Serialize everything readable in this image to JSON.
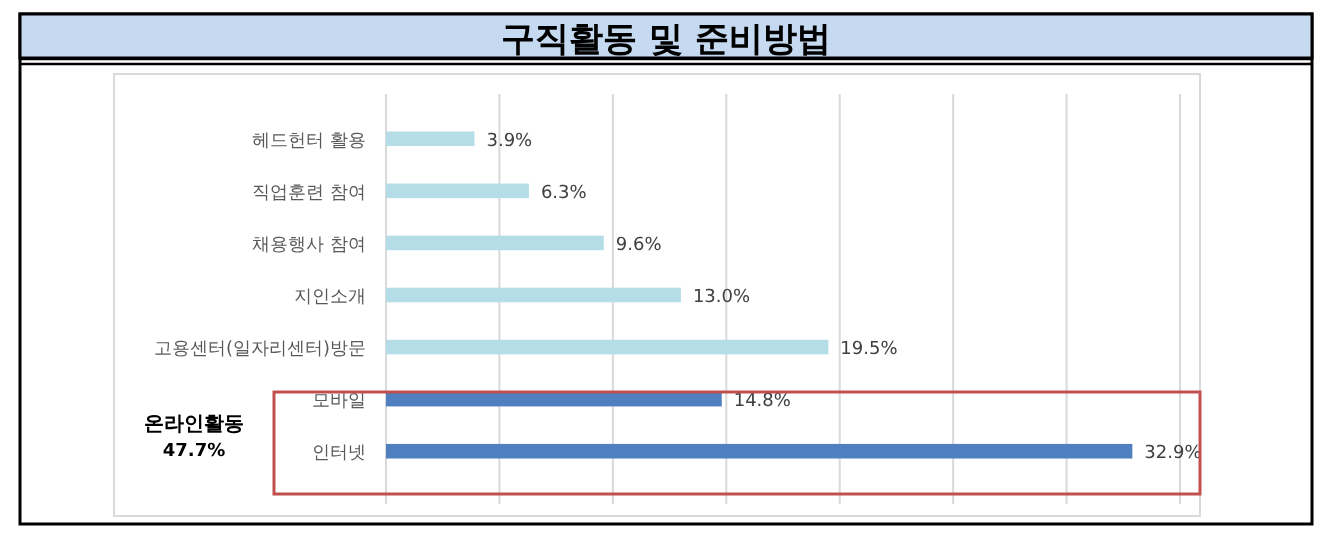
{
  "chart_data": {
    "type": "bar",
    "orientation": "horizontal",
    "title": "구직활동 및 준비방법",
    "categories": [
      "헤드헌터 활용",
      "직업훈련 참여",
      "채용행사 참여",
      "지인소개",
      "고용센터(일자리센터)방문",
      "모바일",
      "인터넷"
    ],
    "values": [
      3.9,
      6.3,
      9.6,
      13.0,
      19.5,
      14.8,
      32.9
    ],
    "colors": [
      "#b4dde7",
      "#b4dde7",
      "#b4dde7",
      "#b4dde7",
      "#b4dde7",
      "#4f7fbf",
      "#4f7fbf"
    ],
    "value_labels": [
      "3.9%",
      "6.3%",
      "9.6%",
      "13.0%",
      "19.5%",
      "14.8%",
      "32.9%"
    ],
    "xlim": [
      0,
      35
    ],
    "xticks": [
      {
        "value": 0,
        "label": null
      },
      {
        "value": 5,
        "label": null
      },
      {
        "value": 10,
        "label": null
      },
      {
        "value": 15,
        "label": null
      },
      {
        "value": 20,
        "label": null
      },
      {
        "value": 25,
        "label": null
      },
      {
        "value": 30,
        "label": null
      },
      {
        "value": 35,
        "label": null
      }
    ],
    "grid": "x",
    "tick_labels": "y",
    "annotations": [
      "온라인활동",
      "47.7%"
    ]
  }
}
